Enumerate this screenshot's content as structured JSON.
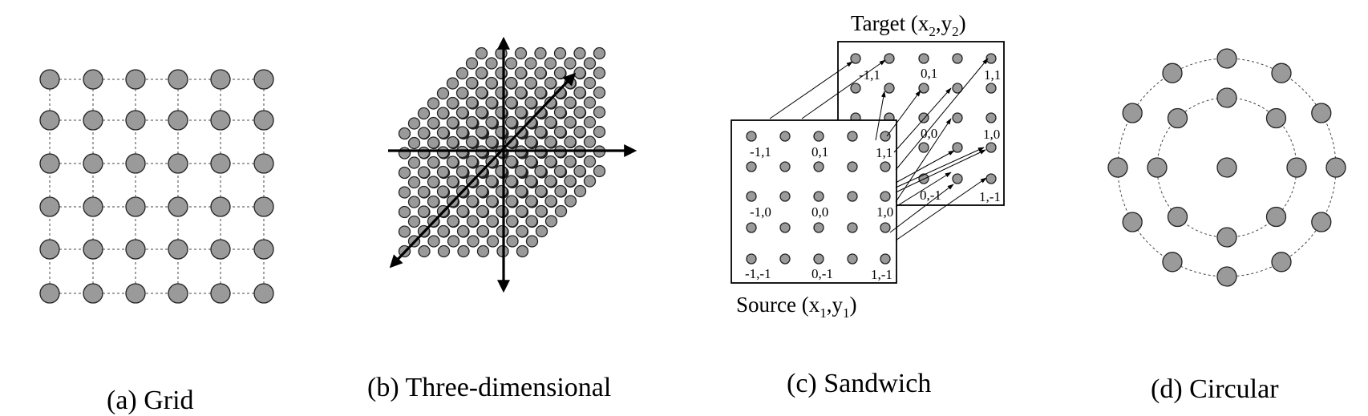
{
  "captions": {
    "grid": "(a) Grid",
    "three_d": "(b) Three-dimensional",
    "sandwich": "(c) Sandwich",
    "circular": "(d) Circular"
  },
  "sandwich": {
    "target_title_main": "Target (x",
    "target_sub_x": "2",
    "target_mid": ",y",
    "target_sub_y": "2",
    "target_close": ")",
    "source_title_main": "Source (x",
    "source_sub_x": "1",
    "source_mid": ",y",
    "source_sub_y": "1",
    "source_close": ")",
    "coords": {
      "n11": "-1,1",
      "z1": "0,1",
      "p11": "1,1",
      "n10": "-1,0",
      "z0": "0,0",
      "p10": "1,0",
      "n1n1": "-1,-1",
      "z1n": "0,-1",
      "p1n1": "1,-1"
    }
  },
  "colors": {
    "node_fill": "#9a9a9a",
    "node_stroke": "#222222"
  }
}
